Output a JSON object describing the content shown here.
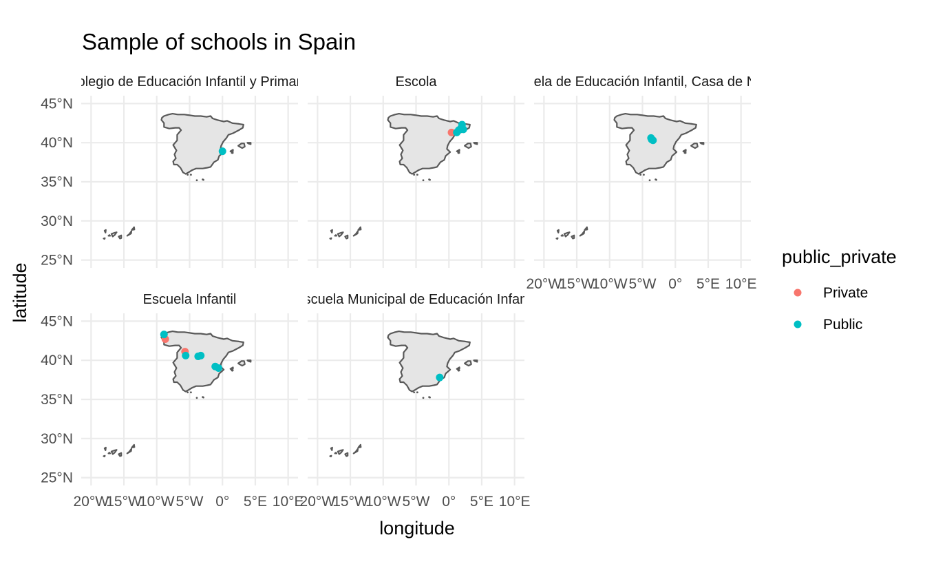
{
  "chart_data": {
    "type": "scatter",
    "title": "Sample of schools in Spain",
    "xlabel": "longitude",
    "ylabel": "latitude",
    "xlim": [
      -20,
      10
    ],
    "ylim": [
      25,
      45
    ],
    "x_ticks": [
      {
        "value": -20,
        "label": "20°W"
      },
      {
        "value": -15,
        "label": "15°W"
      },
      {
        "value": -10,
        "label": "10°W"
      },
      {
        "value": -5,
        "label": "5°W"
      },
      {
        "value": 0,
        "label": "0°"
      },
      {
        "value": 5,
        "label": "5°E"
      },
      {
        "value": 10,
        "label": "10°E"
      }
    ],
    "y_ticks": [
      {
        "value": 25,
        "label": "25°N"
      },
      {
        "value": 30,
        "label": "30°N"
      },
      {
        "value": 35,
        "label": "35°N"
      },
      {
        "value": 40,
        "label": "40°N"
      },
      {
        "value": 45,
        "label": "45°N"
      }
    ],
    "grid": true,
    "legend": {
      "title": "public_private",
      "position": "right",
      "entries": [
        {
          "label": "Private",
          "color": "#F8766D"
        },
        {
          "label": "Public",
          "color": "#00BFC4"
        }
      ]
    },
    "colors": {
      "Private": "#F8766D",
      "Public": "#00BFC4",
      "land": "#E5E5E5",
      "border": "#595959",
      "grid": "#EBEBEB"
    },
    "panels": [
      {
        "strip": "Colegio de Educación Infantil y Primaria",
        "points": [
          {
            "lon": 0.0,
            "lat": 38.9,
            "type": "Public"
          }
        ]
      },
      {
        "strip": "Escola",
        "points": [
          {
            "lon": 0.4,
            "lat": 41.3,
            "type": "Private"
          },
          {
            "lon": 1.2,
            "lat": 41.3,
            "type": "Public"
          },
          {
            "lon": 1.8,
            "lat": 41.8,
            "type": "Public"
          },
          {
            "lon": 2.0,
            "lat": 42.3,
            "type": "Public"
          },
          {
            "lon": 2.2,
            "lat": 41.7,
            "type": "Public"
          },
          {
            "lon": 1.5,
            "lat": 41.6,
            "type": "Public"
          }
        ]
      },
      {
        "strip": "Escuela de Educación Infantil, Casa de Niños",
        "points": [
          {
            "lon": -3.7,
            "lat": 40.6,
            "type": "Public"
          },
          {
            "lon": -3.4,
            "lat": 40.3,
            "type": "Public"
          },
          {
            "lon": -3.6,
            "lat": 40.4,
            "type": "Public"
          }
        ]
      },
      {
        "strip": "Escuela Infantil",
        "points": [
          {
            "lon": -8.7,
            "lat": 42.7,
            "type": "Private"
          },
          {
            "lon": -8.9,
            "lat": 43.3,
            "type": "Public"
          },
          {
            "lon": -5.7,
            "lat": 41.1,
            "type": "Private"
          },
          {
            "lon": -5.6,
            "lat": 40.6,
            "type": "Public"
          },
          {
            "lon": -3.7,
            "lat": 40.5,
            "type": "Public"
          },
          {
            "lon": -3.3,
            "lat": 40.6,
            "type": "Public"
          },
          {
            "lon": -1.1,
            "lat": 39.2,
            "type": "Public"
          },
          {
            "lon": -0.6,
            "lat": 39.0,
            "type": "Public"
          }
        ]
      },
      {
        "strip": "Escuela Municipal de Educación Infantil",
        "points": [
          {
            "lon": -1.4,
            "lat": 37.8,
            "type": "Public"
          }
        ]
      }
    ]
  }
}
